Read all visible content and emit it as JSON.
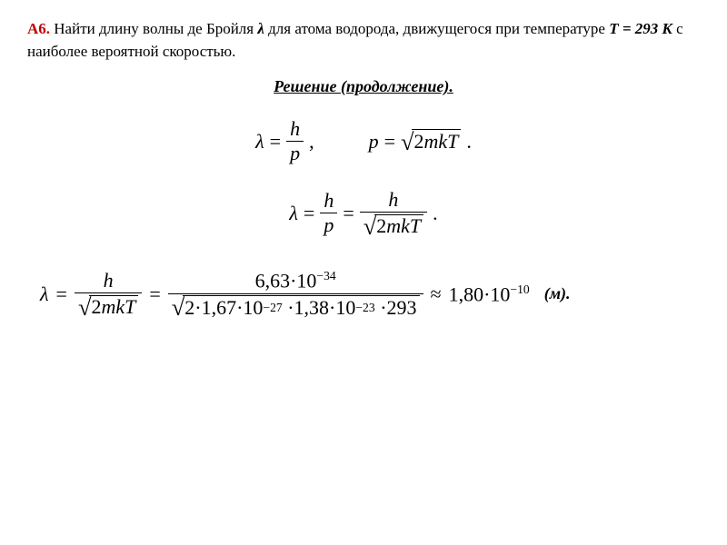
{
  "problem": {
    "number": "А6.",
    "text_before_lambda": "Найти длину волны де Бройля ",
    "lambda_sym": "λ",
    "text_mid1": " для атома водорода, движущегося при температуре ",
    "temp": "T = 293 K",
    "text_after": " с наиболее вероятной скоростью."
  },
  "solution_title": "Решение (продолжение).",
  "symbols": {
    "lambda": "λ",
    "h": "h",
    "p": "p",
    "eq": "=",
    "comma": ",",
    "dot": ".",
    "approx": "≈",
    "m": "m",
    "k": "k",
    "T": "T",
    "two": "2",
    "radical": "√",
    "mult": "·"
  },
  "numeric": {
    "h_val": "6,63",
    "h_exp": "−34",
    "m_val": "1,67",
    "m_exp": "−27",
    "k_val": "1,38",
    "k_exp": "−23",
    "T_val": "293",
    "two": "2",
    "ten": "10",
    "result_val": "1,80",
    "result_exp": "−10"
  },
  "unit": "(м).",
  "style": {
    "background": "#ffffff",
    "text_color": "#000000",
    "accent_color": "#c00000",
    "font_family": "Times New Roman",
    "body_fontsize": 17,
    "eq_fontsize": 22
  }
}
